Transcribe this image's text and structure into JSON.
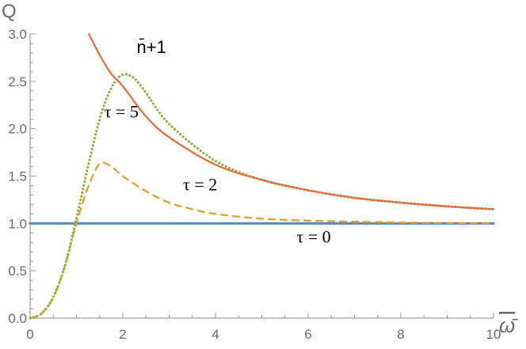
{
  "chart_data": {
    "type": "line",
    "xlabel": "ω̄",
    "ylabel": "Q",
    "xlim": [
      0,
      10
    ],
    "ylim": [
      0,
      3.0
    ],
    "xticks": [
      0,
      2,
      4,
      6,
      8,
      10
    ],
    "yticks": [
      0.0,
      0.5,
      1.0,
      1.5,
      2.0,
      2.5,
      3.0
    ],
    "ytick_labels": [
      "0.0",
      "0.5",
      "1.0",
      "1.5",
      "2.0",
      "2.5",
      "3.0"
    ],
    "series": [
      {
        "name": "n̄+1",
        "color": "#e07040",
        "style": "solid",
        "x": [
          1.27,
          1.5,
          1.75,
          2.0,
          2.5,
          3.0,
          4.0,
          5.0,
          6.0,
          7.0,
          8.0,
          9.0,
          10.0
        ],
        "y": [
          3.0,
          2.78,
          2.58,
          2.45,
          2.13,
          1.91,
          1.62,
          1.46,
          1.35,
          1.27,
          1.22,
          1.18,
          1.15
        ]
      },
      {
        "name": "τ = 5",
        "color": "#8db33a",
        "style": "dotted",
        "x": [
          0,
          0.25,
          0.5,
          0.75,
          1.0,
          1.25,
          1.5,
          1.75,
          2.0,
          2.25,
          2.5,
          3.0,
          4.0,
          5.0,
          6.0,
          7.0,
          8.0,
          9.0,
          10.0
        ],
        "y": [
          0.0,
          0.05,
          0.22,
          0.55,
          1.05,
          1.6,
          2.1,
          2.43,
          2.57,
          2.53,
          2.38,
          2.05,
          1.66,
          1.46,
          1.35,
          1.27,
          1.22,
          1.18,
          1.15
        ]
      },
      {
        "name": "τ = 2",
        "color": "#e0a030",
        "style": "dashed",
        "x": [
          0,
          0.25,
          0.5,
          0.75,
          1.0,
          1.25,
          1.5,
          1.75,
          2.0,
          2.5,
          3.0,
          3.5,
          4.0,
          5.0,
          6.0,
          8.0,
          10.0
        ],
        "y": [
          0.0,
          0.05,
          0.22,
          0.55,
          1.0,
          1.38,
          1.63,
          1.6,
          1.5,
          1.34,
          1.22,
          1.15,
          1.1,
          1.05,
          1.03,
          1.01,
          1.0
        ]
      },
      {
        "name": "τ = 0",
        "color": "#5a87c5",
        "style": "solid",
        "x": [
          0,
          10
        ],
        "y": [
          1.0,
          1.0
        ]
      }
    ],
    "annotations": [
      {
        "text": "n̄+1",
        "x": 2.3,
        "y": 2.8
      },
      {
        "text": "τ = 5",
        "x": 1.6,
        "y": 2.12
      },
      {
        "text": "τ = 2",
        "x": 3.3,
        "y": 1.35
      },
      {
        "text": "τ = 0",
        "x": 5.75,
        "y": 0.8
      }
    ]
  }
}
